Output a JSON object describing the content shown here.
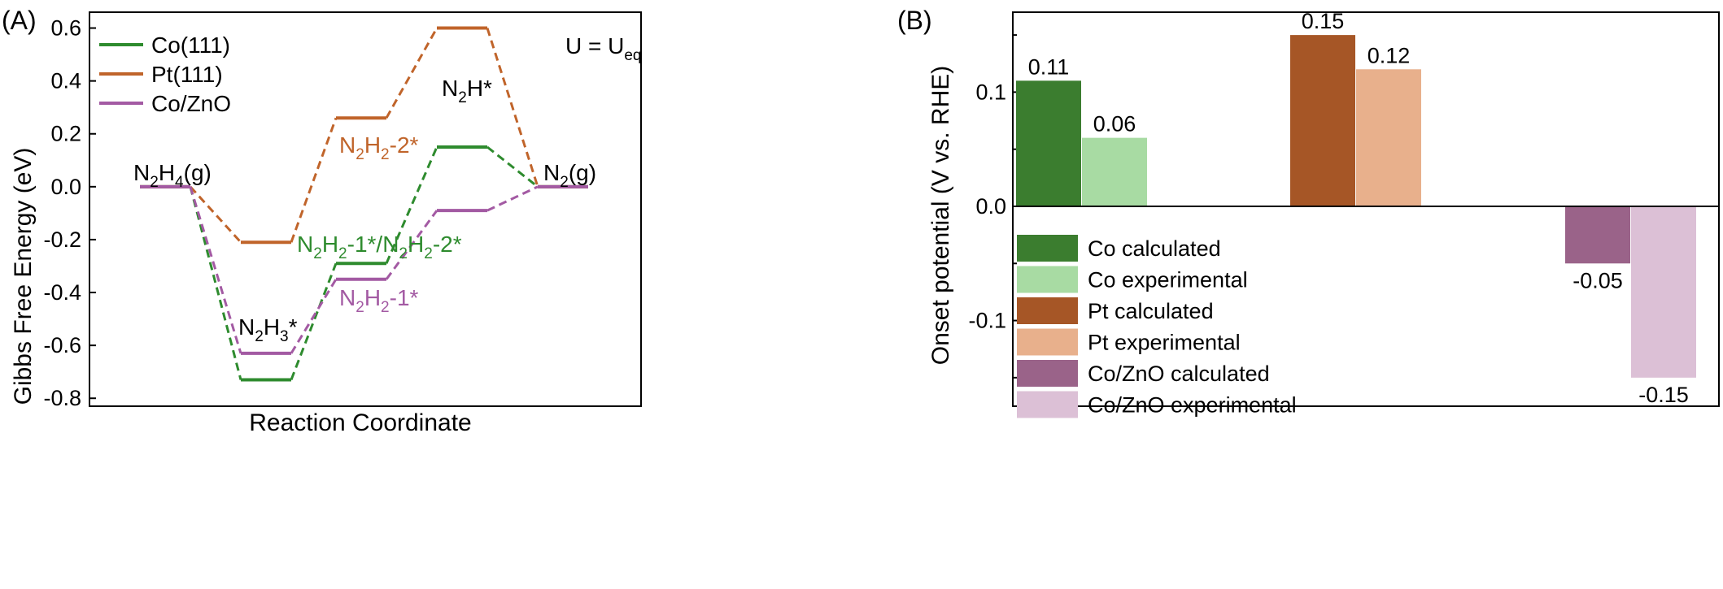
{
  "panels": {
    "a": {
      "label": "(A)",
      "ylabel": "Gibbs Free Energy (eV)",
      "xlabel": "Reaction Coordinate",
      "condition": {
        "main": "U = U",
        "sub": "eq"
      }
    },
    "b": {
      "label": "(B)",
      "ylabel": "Onset potential (V vs. RHE)"
    }
  },
  "chart_data": [
    {
      "type": "line",
      "chart_kind": "free-energy diagram",
      "ylabel": "Gibbs Free Energy (eV)",
      "xlabel": "Reaction Coordinate",
      "ylim": [
        -0.83,
        0.66
      ],
      "yticks": [
        -0.8,
        -0.6,
        -0.4,
        -0.2,
        0.0,
        0.2,
        0.4,
        0.6
      ],
      "ytick_labels": [
        "-0.8",
        "-0.6",
        "-0.4",
        "-0.2",
        "0.0",
        "0.2",
        "0.4",
        "0.6"
      ],
      "steps": 5,
      "legend_position": "top-left",
      "series": [
        {
          "name": "Co(111)",
          "color": "#2e8b2e",
          "values": [
            0.0,
            -0.73,
            -0.29,
            0.15,
            0.0
          ]
        },
        {
          "name": "Pt(111)",
          "color": "#c0642a",
          "values": [
            0.0,
            -0.21,
            0.26,
            0.6,
            0.0
          ]
        },
        {
          "name": "Co/ZnO",
          "color": "#a35aa3",
          "values": [
            0.0,
            -0.63,
            -0.35,
            -0.09,
            0.0
          ]
        }
      ],
      "annotations": [
        {
          "parts": [
            [
              "N",
              "n"
            ],
            [
              "2",
              "sub"
            ],
            [
              "H",
              "n"
            ],
            [
              "4",
              "sub"
            ],
            [
              "(g)",
              "n"
            ]
          ],
          "color": "#000000"
        },
        {
          "parts": [
            [
              "N",
              "n"
            ],
            [
              "2",
              "sub"
            ],
            [
              "H",
              "n"
            ],
            [
              "3",
              "sub"
            ],
            [
              "*",
              "n"
            ]
          ],
          "color": "#000000"
        },
        {
          "parts": [
            [
              "N",
              "n"
            ],
            [
              "2",
              "sub"
            ],
            [
              "H",
              "n"
            ],
            [
              "2",
              "sub"
            ],
            [
              "-1*/N",
              "n"
            ],
            [
              "2",
              "sub"
            ],
            [
              "H",
              "n"
            ],
            [
              "2",
              "sub"
            ],
            [
              "-2*",
              "n"
            ]
          ],
          "color": "#2e8b2e"
        },
        {
          "parts": [
            [
              "N",
              "n"
            ],
            [
              "2",
              "sub"
            ],
            [
              "H",
              "n"
            ],
            [
              "2",
              "sub"
            ],
            [
              "-1*",
              "n"
            ]
          ],
          "color": "#a35aa3"
        },
        {
          "parts": [
            [
              "N",
              "n"
            ],
            [
              "2",
              "sub"
            ],
            [
              "H",
              "n"
            ],
            [
              "2",
              "sub"
            ],
            [
              "-2*",
              "n"
            ]
          ],
          "color": "#c0642a"
        },
        {
          "parts": [
            [
              "N",
              "n"
            ],
            [
              "2",
              "sub"
            ],
            [
              "H*",
              "n"
            ]
          ],
          "color": "#000000"
        },
        {
          "parts": [
            [
              "N",
              "n"
            ],
            [
              "2",
              "sub"
            ],
            [
              "(g)",
              "n"
            ]
          ],
          "color": "#000000"
        }
      ]
    },
    {
      "type": "bar",
      "ylabel": "Onset potential (V vs. RHE)",
      "ylim": [
        -0.175,
        0.17
      ],
      "yticks": [
        -0.1,
        0.0,
        0.1
      ],
      "ytick_labels": [
        "-0.1",
        "0.0",
        "0.1"
      ],
      "legend_position": "bottom-left",
      "groups": [
        "Co",
        "Pt",
        "Co/ZnO"
      ],
      "bars": [
        {
          "name": "Co calculated",
          "value": 0.11,
          "label": "0.11",
          "color": "#3b7d2f"
        },
        {
          "name": "Co experimental",
          "value": 0.06,
          "label": "0.06",
          "color": "#a8dba3"
        },
        {
          "name": "Pt calculated",
          "value": 0.15,
          "label": "0.15",
          "color": "#a65626"
        },
        {
          "name": "Pt experimental",
          "value": 0.12,
          "label": "0.12",
          "color": "#e8b08c"
        },
        {
          "name": "Co/ZnO calculated",
          "value": -0.05,
          "label": "-0.05",
          "color": "#9a6389"
        },
        {
          "name": "Co/ZnO experimental",
          "value": -0.15,
          "label": "-0.15",
          "color": "#dcc0d6"
        }
      ]
    }
  ]
}
